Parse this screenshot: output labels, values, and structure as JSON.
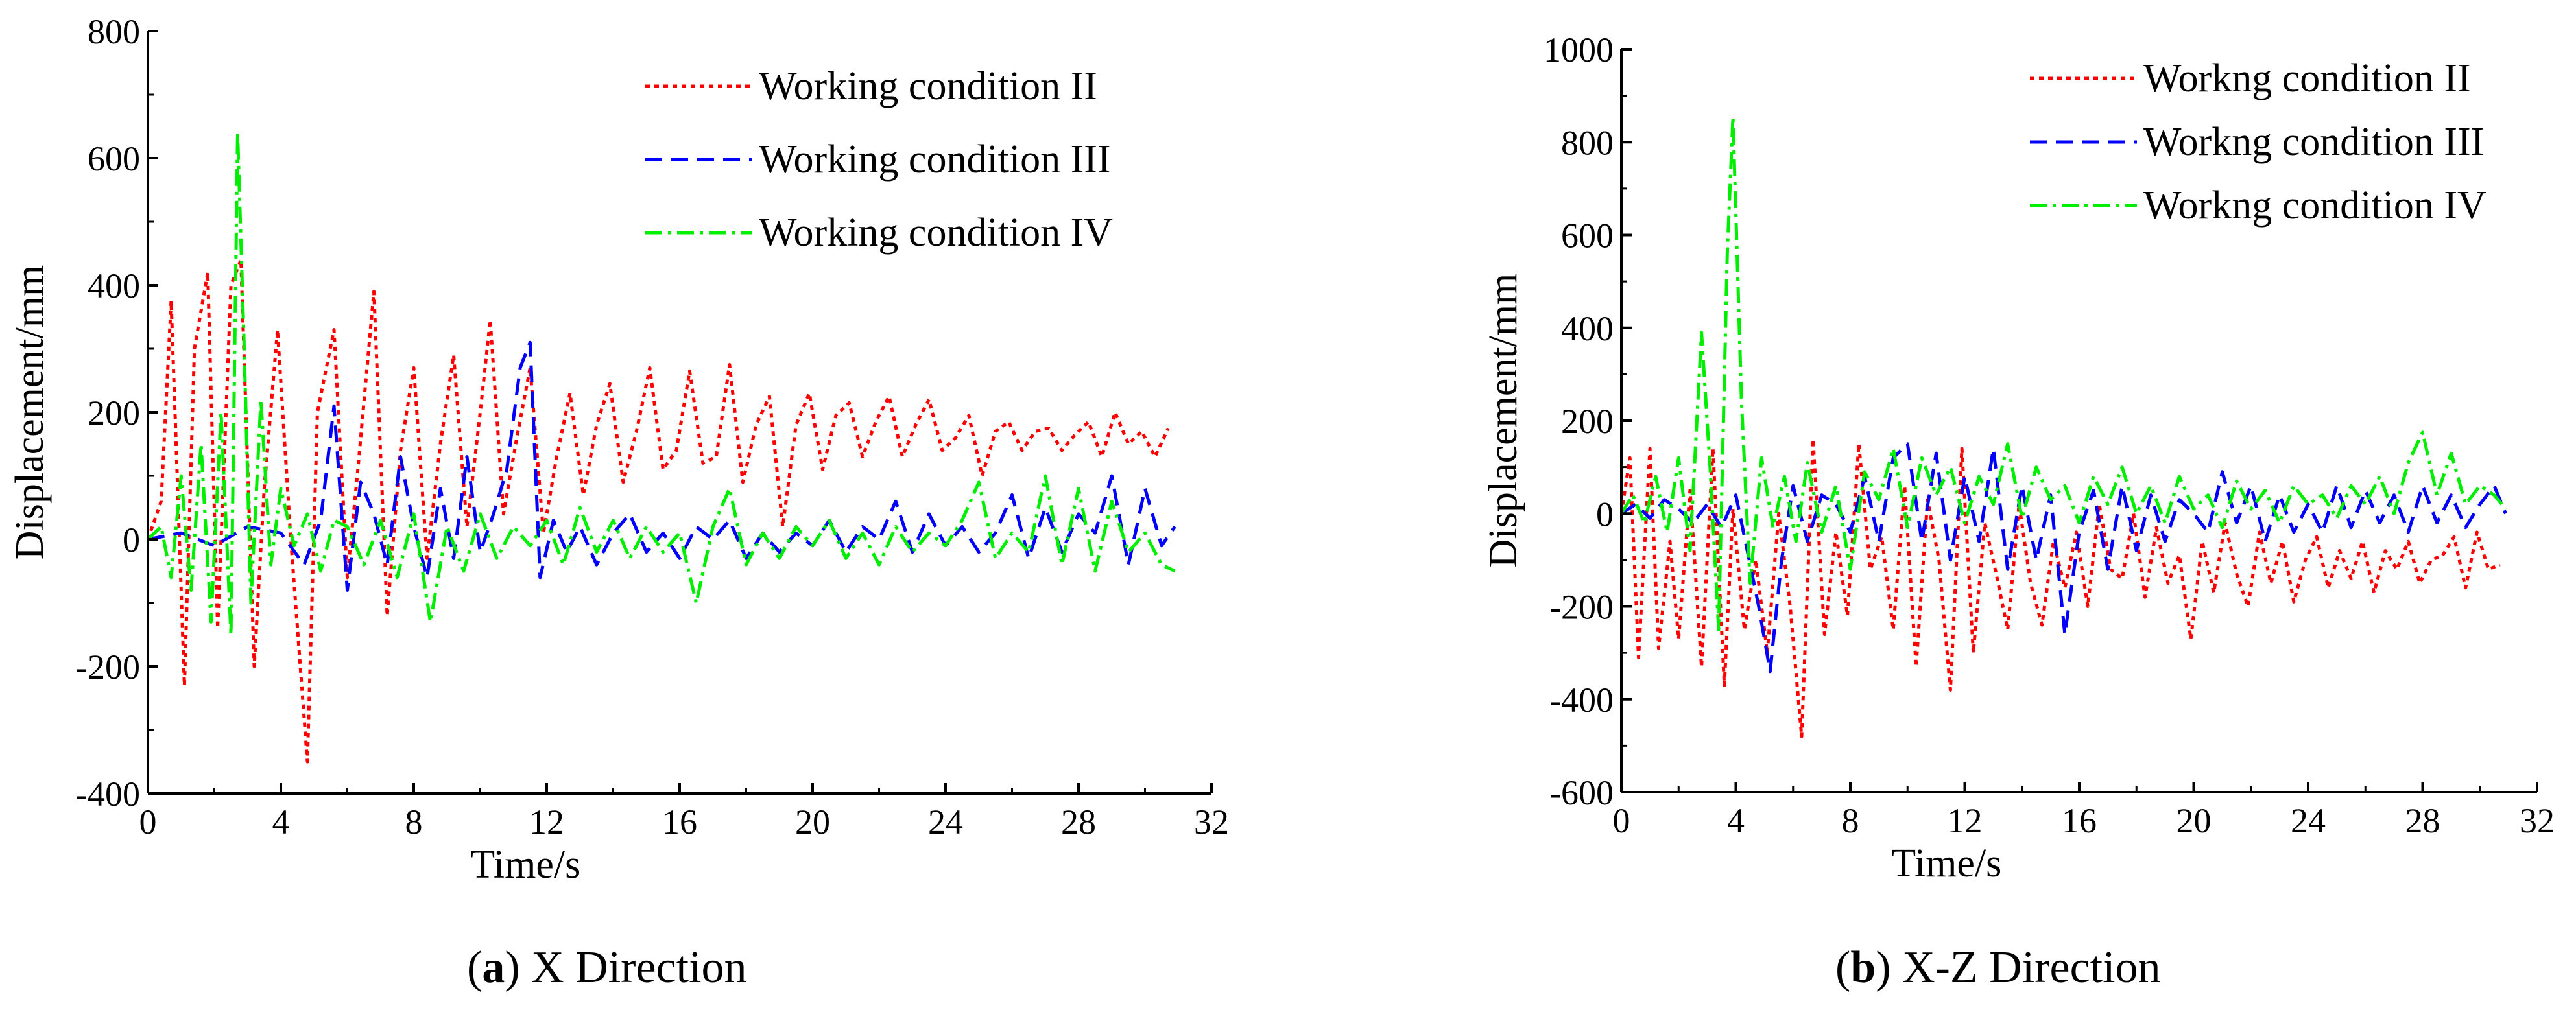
{
  "chart_data": [
    {
      "type": "line",
      "panel_letter": "a",
      "caption": "X Direction",
      "xlabel": "Time/s",
      "ylabel": "Displacement/mm",
      "xlim": [
        0,
        32
      ],
      "ylim": [
        -400,
        800
      ],
      "xticks": [
        0,
        4,
        8,
        12,
        16,
        20,
        24,
        28,
        32
      ],
      "yticks": [
        -400,
        -200,
        0,
        200,
        400,
        600,
        800
      ],
      "legend_position": "top-right",
      "series": [
        {
          "name": "Working condition II",
          "color": "#ff0000",
          "dash": "dot",
          "x": [
            0,
            0.4,
            0.7,
            1.1,
            1.4,
            1.8,
            2.1,
            2.5,
            2.8,
            3.2,
            3.5,
            3.9,
            4.3,
            4.8,
            5.1,
            5.6,
            6.0,
            6.3,
            6.8,
            7.2,
            7.6,
            8.0,
            8.4,
            8.8,
            9.2,
            9.6,
            10.0,
            10.3,
            10.7,
            11.1,
            11.5,
            11.9,
            12.3,
            12.7,
            13.1,
            13.5,
            13.9,
            14.3,
            14.7,
            15.1,
            15.5,
            15.9,
            16.3,
            16.7,
            17.1,
            17.5,
            17.9,
            18.3,
            18.7,
            19.1,
            19.5,
            19.9,
            20.3,
            20.7,
            21.1,
            21.5,
            21.9,
            22.3,
            22.7,
            23.1,
            23.5,
            23.9,
            24.3,
            24.7,
            25.1,
            25.5,
            25.9,
            26.3,
            26.7,
            27.1,
            27.5,
            27.9,
            28.3,
            28.7,
            29.1,
            29.5,
            29.9,
            30.3,
            30.7
          ],
          "y": [
            0,
            60,
            375,
            -230,
            300,
            420,
            -140,
            400,
            440,
            -200,
            80,
            330,
            0,
            -350,
            200,
            330,
            -60,
            100,
            390,
            -120,
            140,
            270,
            -30,
            150,
            290,
            20,
            200,
            345,
            40,
            160,
            270,
            10,
            130,
            230,
            70,
            180,
            245,
            90,
            170,
            270,
            110,
            140,
            265,
            120,
            130,
            275,
            90,
            180,
            225,
            20,
            180,
            230,
            110,
            195,
            215,
            130,
            185,
            225,
            130,
            180,
            220,
            140,
            160,
            195,
            100,
            170,
            185,
            140,
            170,
            175,
            140,
            165,
            185,
            130,
            200,
            150,
            170,
            130,
            175
          ]
        },
        {
          "name": "Working condition III",
          "color": "#0000ff",
          "dash": "dash",
          "x": [
            0,
            1.0,
            2.0,
            3.0,
            4.0,
            4.7,
            5.2,
            5.6,
            6.0,
            6.4,
            6.8,
            7.2,
            7.6,
            8.0,
            8.4,
            8.8,
            9.2,
            9.6,
            10.0,
            10.4,
            10.8,
            11.2,
            11.5,
            11.8,
            12.2,
            12.6,
            13.0,
            13.5,
            14.0,
            14.5,
            15.0,
            15.5,
            16.0,
            16.5,
            17.0,
            17.5,
            18.0,
            18.5,
            19.0,
            19.5,
            20.0,
            20.5,
            21.0,
            21.5,
            22.0,
            22.5,
            23.0,
            23.5,
            24.0,
            24.5,
            25.0,
            25.5,
            26.0,
            26.5,
            27.0,
            27.5,
            28.0,
            28.5,
            29.0,
            29.5,
            30.0,
            30.5,
            30.9
          ],
          "y": [
            0,
            10,
            -10,
            20,
            10,
            -40,
            30,
            210,
            -80,
            90,
            40,
            -40,
            130,
            20,
            -60,
            80,
            -30,
            130,
            -20,
            40,
            110,
            270,
            310,
            -60,
            30,
            -20,
            20,
            -40,
            10,
            40,
            -20,
            10,
            -30,
            20,
            0,
            30,
            -30,
            10,
            -20,
            10,
            -10,
            30,
            -20,
            20,
            0,
            60,
            -20,
            40,
            -10,
            20,
            -20,
            10,
            70,
            -30,
            50,
            -20,
            40,
            10,
            100,
            -40,
            80,
            -10,
            20
          ]
        },
        {
          "name": "Working condition IV",
          "color": "#00ee00",
          "dash": "dashdot",
          "x": [
            0,
            0.4,
            0.7,
            1.0,
            1.3,
            1.6,
            1.9,
            2.2,
            2.5,
            2.7,
            2.9,
            3.1,
            3.4,
            3.7,
            4.0,
            4.4,
            4.8,
            5.2,
            5.6,
            6.0,
            6.5,
            7.0,
            7.5,
            8.0,
            8.5,
            9.0,
            9.5,
            10.0,
            10.5,
            11.0,
            11.5,
            12.0,
            12.5,
            13.0,
            13.5,
            14.0,
            14.5,
            15.0,
            15.5,
            16.0,
            16.5,
            17.0,
            17.5,
            18.0,
            18.5,
            19.0,
            19.5,
            20.0,
            20.5,
            21.0,
            21.5,
            22.0,
            22.5,
            23.0,
            23.5,
            24.0,
            24.5,
            25.0,
            25.5,
            26.0,
            26.5,
            27.0,
            27.5,
            28.0,
            28.5,
            29.0,
            29.5,
            30.0,
            30.5,
            30.9
          ],
          "y": [
            0,
            20,
            -60,
            100,
            -80,
            150,
            -130,
            200,
            -150,
            640,
            300,
            -100,
            220,
            -40,
            80,
            -10,
            40,
            -50,
            30,
            20,
            -40,
            30,
            -60,
            40,
            -130,
            20,
            -50,
            40,
            -30,
            20,
            -10,
            30,
            -40,
            50,
            -20,
            30,
            -30,
            20,
            -20,
            10,
            -100,
            20,
            80,
            -40,
            10,
            -30,
            20,
            -10,
            30,
            -30,
            10,
            -40,
            20,
            -20,
            10,
            -10,
            30,
            90,
            -30,
            10,
            -20,
            100,
            -40,
            80,
            -50,
            60,
            -20,
            10,
            -40,
            -50
          ]
        }
      ]
    },
    {
      "type": "line",
      "panel_letter": "b",
      "caption": "X-Z Direction",
      "xlabel": "Time/s",
      "ylabel": "Displacement/mm",
      "xlim": [
        0,
        32
      ],
      "ylim": [
        -600,
        1000
      ],
      "xticks": [
        0,
        4,
        8,
        12,
        16,
        20,
        24,
        28,
        32
      ],
      "yticks": [
        -600,
        -400,
        -200,
        0,
        200,
        400,
        600,
        800,
        1000
      ],
      "legend_position": "top-right",
      "series": [
        {
          "name": "Workng condition II",
          "color": "#ff0000",
          "dash": "dot",
          "x": [
            0,
            0.3,
            0.6,
            1.0,
            1.3,
            1.7,
            2.0,
            2.4,
            2.8,
            3.2,
            3.6,
            3.9,
            4.3,
            4.7,
            5.1,
            5.5,
            5.9,
            6.3,
            6.7,
            7.1,
            7.5,
            7.9,
            8.3,
            8.7,
            9.1,
            9.5,
            9.9,
            10.3,
            10.7,
            11.1,
            11.5,
            11.9,
            12.3,
            12.7,
            13.1,
            13.5,
            13.9,
            14.3,
            14.7,
            15.1,
            15.5,
            15.9,
            16.3,
            16.7,
            17.1,
            17.5,
            17.9,
            18.3,
            18.7,
            19.1,
            19.5,
            19.9,
            20.3,
            20.7,
            21.1,
            21.5,
            21.9,
            22.3,
            22.7,
            23.1,
            23.5,
            23.9,
            24.3,
            24.7,
            25.1,
            25.5,
            25.9,
            26.3,
            26.7,
            27.1,
            27.5,
            27.9,
            28.3,
            28.7,
            29.1,
            29.5,
            29.9,
            30.3,
            30.7
          ],
          "y": [
            0,
            120,
            -310,
            140,
            -290,
            -60,
            -270,
            50,
            -330,
            140,
            -370,
            10,
            -250,
            -100,
            -300,
            0,
            -200,
            -480,
            160,
            -260,
            -40,
            -220,
            150,
            -120,
            -50,
            -250,
            60,
            -330,
            30,
            -100,
            -380,
            140,
            -300,
            -20,
            -130,
            -250,
            20,
            -150,
            -240,
            -60,
            -160,
            -40,
            -200,
            20,
            -120,
            -140,
            0,
            -180,
            -30,
            -150,
            -90,
            -270,
            -60,
            -170,
            -20,
            -130,
            -200,
            -40,
            -150,
            -60,
            -190,
            -100,
            -50,
            -160,
            -80,
            -140,
            -60,
            -170,
            -80,
            -120,
            -60,
            -150,
            -100,
            -90,
            -50,
            -160,
            -40,
            -120,
            -110
          ]
        },
        {
          "name": "Workng condition III",
          "color": "#0000ff",
          "dash": "dash",
          "x": [
            0,
            0.5,
            1.0,
            1.5,
            2.0,
            2.5,
            3.0,
            3.5,
            4.0,
            4.4,
            4.8,
            5.2,
            5.6,
            6.0,
            6.5,
            7.0,
            7.5,
            8.0,
            8.5,
            9.0,
            9.5,
            10.0,
            10.5,
            11.0,
            11.5,
            12.0,
            12.5,
            13.0,
            13.5,
            14.0,
            14.5,
            15.0,
            15.5,
            16.0,
            16.5,
            17.0,
            17.5,
            18.0,
            18.5,
            19.0,
            19.5,
            20.0,
            20.5,
            21.0,
            21.5,
            22.0,
            22.5,
            23.0,
            23.5,
            24.0,
            24.5,
            25.0,
            25.5,
            26.0,
            26.5,
            27.0,
            27.5,
            28.0,
            28.5,
            29.0,
            29.5,
            30.0,
            30.5,
            30.9
          ],
          "y": [
            0,
            20,
            -10,
            30,
            10,
            -20,
            20,
            -30,
            40,
            -80,
            -200,
            -340,
            -100,
            60,
            -60,
            40,
            20,
            -40,
            80,
            -60,
            120,
            150,
            -60,
            130,
            -100,
            80,
            -60,
            140,
            -120,
            60,
            -100,
            40,
            -260,
            -40,
            50,
            -120,
            60,
            -80,
            40,
            -60,
            30,
            0,
            -40,
            90,
            -20,
            60,
            -60,
            40,
            -40,
            20,
            -40,
            60,
            -30,
            50,
            -20,
            40,
            -40,
            60,
            -20,
            40,
            -30,
            20,
            60,
            0
          ]
        },
        {
          "name": "Workng condition IV",
          "color": "#00ee00",
          "dash": "dashdot",
          "x": [
            0,
            0.4,
            0.8,
            1.2,
            1.6,
            2.0,
            2.4,
            2.8,
            3.1,
            3.4,
            3.7,
            3.9,
            4.2,
            4.5,
            4.9,
            5.3,
            5.7,
            6.1,
            6.5,
            7.0,
            7.5,
            8.0,
            8.5,
            9.0,
            9.5,
            10.0,
            10.5,
            11.0,
            11.5,
            12.0,
            12.5,
            13.0,
            13.5,
            14.0,
            14.5,
            15.0,
            15.5,
            16.0,
            16.5,
            17.0,
            17.5,
            18.0,
            18.5,
            19.0,
            19.5,
            20.0,
            20.5,
            21.0,
            21.5,
            22.0,
            22.5,
            23.0,
            23.5,
            24.0,
            24.5,
            25.0,
            25.5,
            26.0,
            26.5,
            27.0,
            27.5,
            28.0,
            28.5,
            29.0,
            29.5,
            30.0,
            30.5,
            30.9
          ],
          "y": [
            0,
            40,
            -20,
            80,
            -40,
            120,
            -80,
            390,
            100,
            -250,
            560,
            855,
            240,
            -150,
            120,
            -30,
            80,
            -60,
            110,
            -40,
            60,
            -120,
            90,
            30,
            140,
            -30,
            120,
            40,
            100,
            -20,
            80,
            20,
            150,
            -10,
            100,
            30,
            60,
            -20,
            80,
            20,
            100,
            0,
            60,
            -20,
            80,
            10,
            40,
            -30,
            70,
            10,
            50,
            -20,
            60,
            20,
            40,
            -10,
            60,
            20,
            80,
            0,
            110,
            175,
            40,
            130,
            20,
            60,
            40,
            10
          ]
        }
      ]
    }
  ]
}
